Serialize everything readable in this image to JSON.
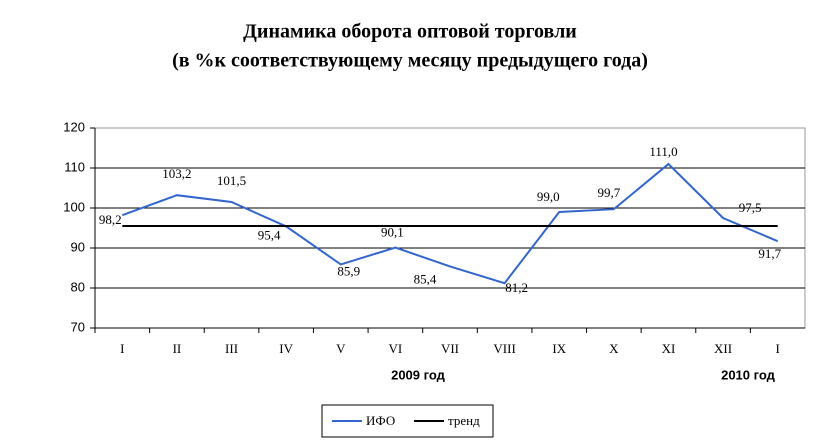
{
  "chart_data": {
    "type": "line",
    "title": "Динамика оборота оптовой торговли",
    "subtitle": "(в %к соответствующему месяцу предыдущего года)",
    "categories": [
      "I",
      "II",
      "III",
      "IV",
      "V",
      "VI",
      "VII",
      "VIII",
      "IX",
      "X",
      "XI",
      "XII",
      "I"
    ],
    "series": [
      {
        "name": "ИФО",
        "color": "#3366cc",
        "values": [
          98.2,
          103.2,
          101.5,
          95.4,
          85.9,
          90.1,
          85.4,
          81.2,
          99.0,
          99.7,
          111.0,
          97.5,
          91.7
        ],
        "value_labels": [
          "98,2",
          "103,2",
          "101,5",
          "95,4",
          "85,9",
          "90,1",
          "85,4",
          "81,2",
          "99,0",
          "99,7",
          "111,0",
          "97,5",
          "91,7"
        ]
      },
      {
        "name": "тренд",
        "color": "#000000",
        "values": [
          95.5,
          95.5,
          95.5,
          95.5,
          95.5,
          95.5,
          95.5,
          95.5,
          95.5,
          95.5,
          95.5,
          95.5,
          95.5
        ]
      }
    ],
    "annotations": [
      "2009 год",
      "2010 год"
    ],
    "ylim": [
      70,
      120
    ],
    "yticks": [
      70,
      80,
      90,
      100,
      110,
      120
    ],
    "grid": true
  }
}
